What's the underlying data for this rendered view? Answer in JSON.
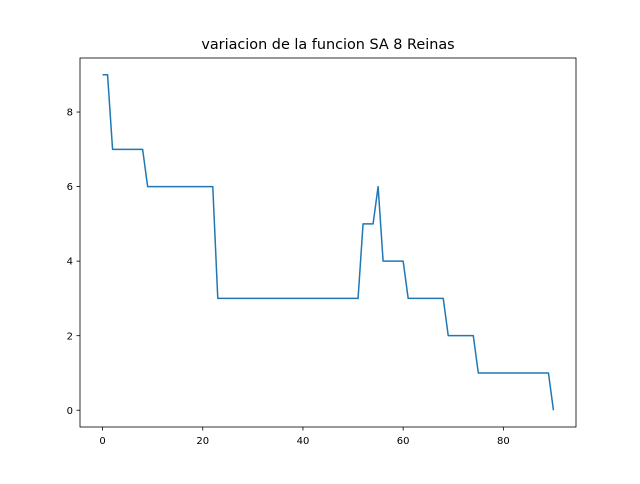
{
  "chart_data": {
    "type": "line",
    "title": "variacion de la funcion SA 8 Reinas",
    "xlabel": "",
    "ylabel": "",
    "xlim": [
      -4.5,
      94.5
    ],
    "ylim": [
      -0.45,
      9.45
    ],
    "x_ticks": [
      0,
      20,
      40,
      60,
      80
    ],
    "y_ticks": [
      0,
      2,
      4,
      6,
      8
    ],
    "x_tick_labels": [
      "0",
      "20",
      "40",
      "60",
      "80"
    ],
    "y_tick_labels": [
      "0",
      "2",
      "4",
      "6",
      "8"
    ],
    "grid": false,
    "line_color": "#1f77b4",
    "series": [
      {
        "x": [
          0,
          1,
          2,
          3,
          4,
          5,
          6,
          7,
          8,
          9,
          10,
          11,
          12,
          13,
          14,
          15,
          16,
          17,
          18,
          19,
          20,
          21,
          22,
          23,
          24,
          25,
          26,
          27,
          28,
          29,
          30,
          31,
          32,
          33,
          34,
          35,
          36,
          37,
          38,
          39,
          40,
          41,
          42,
          43,
          44,
          45,
          46,
          47,
          48,
          49,
          50,
          51,
          52,
          53,
          54,
          55,
          56,
          57,
          58,
          59,
          60,
          61,
          62,
          63,
          64,
          65,
          66,
          67,
          68,
          69,
          70,
          71,
          72,
          73,
          74,
          75,
          76,
          77,
          78,
          79,
          80,
          81,
          82,
          83,
          84,
          85,
          86,
          87,
          88,
          89,
          90
        ],
        "y": [
          9,
          9,
          7,
          7,
          7,
          7,
          7,
          7,
          7,
          6,
          6,
          6,
          6,
          6,
          6,
          6,
          6,
          6,
          6,
          6,
          6,
          6,
          6,
          3,
          3,
          3,
          3,
          3,
          3,
          3,
          3,
          3,
          3,
          3,
          3,
          3,
          3,
          3,
          3,
          3,
          3,
          3,
          3,
          3,
          3,
          3,
          3,
          3,
          3,
          3,
          3,
          3,
          5,
          5,
          5,
          6,
          4,
          4,
          4,
          4,
          4,
          3,
          3,
          3,
          3,
          3,
          3,
          3,
          3,
          2,
          2,
          2,
          2,
          2,
          2,
          1,
          1,
          1,
          1,
          1,
          1,
          1,
          1,
          1,
          1,
          1,
          1,
          1,
          1,
          1,
          0
        ]
      }
    ]
  }
}
